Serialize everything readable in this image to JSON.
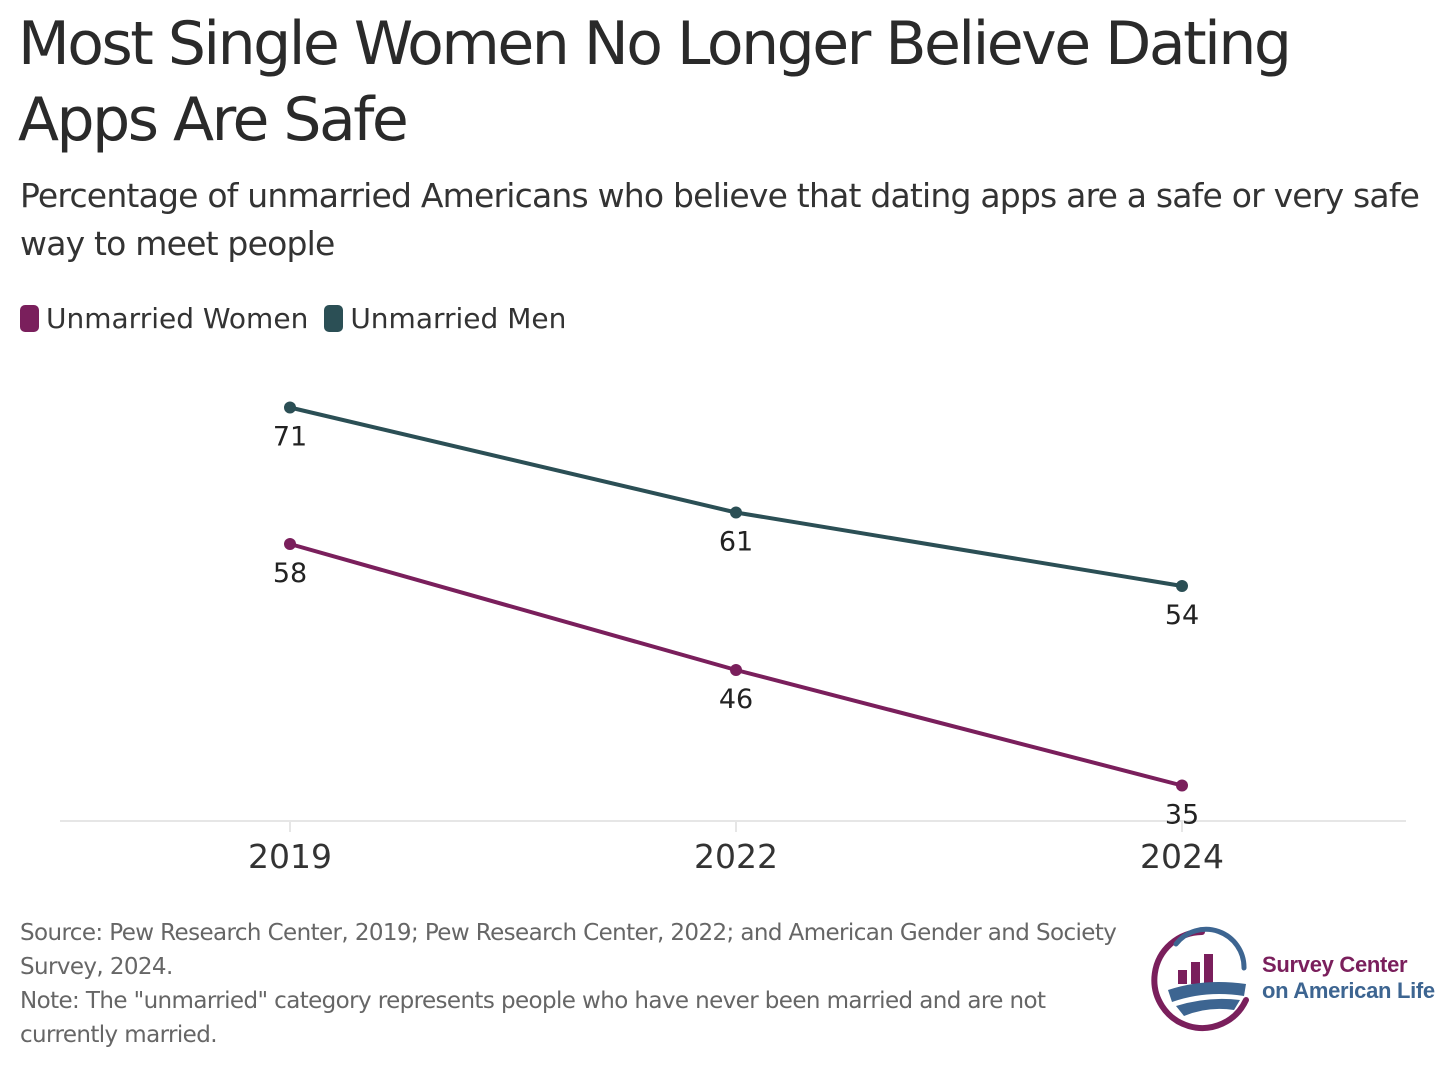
{
  "title": "Most Single Women No Longer Believe Dating Apps Are Safe",
  "subtitle": "Percentage of unmarried Americans who believe that dating apps are a safe or very safe way to meet people",
  "colors": {
    "women": "#7a1f5c",
    "men": "#2b4f55",
    "axis": "#e6e6e6",
    "logo_blue": "#3d6591"
  },
  "chart_data": {
    "type": "line",
    "x": [
      "2019",
      "2022",
      "2024"
    ],
    "series": [
      {
        "name": "Unmarried Women",
        "color": "#7a1f5c",
        "values": [
          58,
          46,
          35
        ]
      },
      {
        "name": "Unmarried Men",
        "color": "#2b4f55",
        "values": [
          71,
          61,
          54
        ]
      }
    ],
    "ylim": [
      0,
      100
    ],
    "grid": false,
    "legend": "top-left",
    "xlabel": "",
    "ylabel": ""
  },
  "footnote": {
    "source": "Source: Pew Research Center, 2019; Pew Research Center, 2022; and American Gender and Society Survey, 2024.",
    "note": "Note: The \"unmarried\" category represents people who have never been married and are not currently married."
  },
  "logo": {
    "line1": "Survey Center",
    "line2": "on American Life",
    "icon": "bar-chart-globe-icon"
  }
}
